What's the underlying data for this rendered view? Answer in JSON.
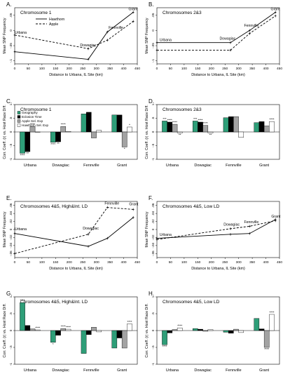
{
  "colors": {
    "geography": "#2e9e78",
    "eclosion": "#000000",
    "apple_sel": "#a3a3a3",
    "hawthorn_sel": "#ffffff"
  },
  "chart_data": [
    {
      "id": "A",
      "panel_label": "A.",
      "type": "line",
      "title": "Chromosome 1",
      "xlabel": "Distance to Urbana, IL Site (km)",
      "ylabel": "Mean SNP Frequency",
      "xlim": [
        0,
        450
      ],
      "ylim": [
        -0.11,
        0.075
      ],
      "xticks": [
        0,
        50,
        100,
        150,
        200,
        250,
        300,
        350,
        400,
        450
      ],
      "yticks": [
        -0.1,
        -0.05,
        0,
        0.05
      ],
      "legend": [
        "Hawthorn",
        "Apple"
      ],
      "series": [
        {
          "name": "Hawthorn",
          "style": "solid",
          "x": [
            0,
            270,
            340,
            435
          ],
          "y": [
            -0.07,
            -0.095,
            -0.005,
            0.06
          ]
        },
        {
          "name": "Apple",
          "style": "dashed",
          "x": [
            0,
            270,
            340,
            435
          ],
          "y": [
            -0.015,
            -0.06,
            -0.032,
            0.03
          ]
        }
      ],
      "labels": [
        {
          "text": "Urbana",
          "x": 0,
          "y": -0.01
        },
        {
          "text": "Dowagiac",
          "x": 240,
          "y": -0.052
        },
        {
          "text": "Fennville",
          "x": 345,
          "y": 0.006
        },
        {
          "text": "Grant",
          "x": 418,
          "y": 0.067
        }
      ]
    },
    {
      "id": "B",
      "panel_label": "B.",
      "type": "line",
      "title": "Chromosomes 2&3",
      "xlabel": "Distance to Urbana, IL Site (km)",
      "ylabel": "Mean SNP Frequency",
      "xlim": [
        0,
        450
      ],
      "ylim": [
        -0.11,
        0.075
      ],
      "xticks": [
        0,
        50,
        100,
        150,
        200,
        250,
        300,
        350,
        400,
        450
      ],
      "yticks": [
        -0.1,
        -0.05,
        0,
        0.05
      ],
      "series": [
        {
          "name": "Hawthorn",
          "style": "solid",
          "x": [
            0,
            270,
            340,
            435
          ],
          "y": [
            -0.04,
            -0.04,
            0,
            0.06
          ]
        },
        {
          "name": "Apple",
          "style": "dashed",
          "x": [
            0,
            270,
            340,
            435
          ],
          "y": [
            -0.065,
            -0.065,
            -0.01,
            0.048
          ]
        }
      ],
      "labels": [
        {
          "text": "Urbana",
          "x": 10,
          "y": -0.035
        },
        {
          "text": "Dowagiac",
          "x": 230,
          "y": -0.03
        },
        {
          "text": "Fennville",
          "x": 320,
          "y": 0.012
        },
        {
          "text": "Grant",
          "x": 418,
          "y": 0.067
        }
      ]
    },
    {
      "id": "C",
      "panel_label": "C.",
      "type": "bar",
      "title": "Chromosome 1",
      "ylabel": "Corr. Coeff. (r) vs. Host Race Diff.",
      "ylim": [
        -1.0,
        1.0
      ],
      "yticks": [
        -1,
        -0.5,
        0,
        0.5,
        1
      ],
      "categories": [
        "Urbana",
        "Dowagiac",
        "Fennville",
        "Grant"
      ],
      "legend": [
        "Geography",
        "Eclosion Time",
        "Apple Sel. Exp",
        "Hawthorn Sel. Exp"
      ],
      "series": [
        {
          "name": "Geography",
          "values": [
            -0.78,
            -0.38,
            0.66,
            0.62
          ]
        },
        {
          "name": "Eclosion Time",
          "values": [
            -0.72,
            -0.36,
            0.72,
            0.62
          ]
        },
        {
          "name": "Apple Sel. Exp",
          "values": [
            0.2,
            0.2,
            -0.22,
            -0.55
          ]
        },
        {
          "name": "Hawthorn Sel. Exp",
          "values": [
            0.0,
            0.02,
            0.06,
            0.18
          ]
        }
      ],
      "markers": [
        [
          "****",
          "****",
          "",
          ""
        ],
        [
          "**",
          "**",
          "",
          ""
        ],
        [
          "****",
          "****",
          "",
          "*"
        ],
        [
          "",
          "",
          "",
          "*"
        ]
      ]
    },
    {
      "id": "D",
      "panel_label": "D.",
      "type": "bar",
      "title": "Chromosomes 2&3",
      "ylabel": "Corr. Coeff. (r) vs. Host Race Diff.",
      "ylim": [
        -1.0,
        1.0
      ],
      "yticks": [
        -1,
        -0.5,
        0,
        0.5,
        1
      ],
      "categories": [
        "Urbana",
        "Dowagiac",
        "Fennville",
        "Grant"
      ],
      "series": [
        {
          "name": "Geography",
          "values": [
            0.4,
            0.4,
            0.52,
            0.34
          ]
        },
        {
          "name": "Eclosion Time",
          "values": [
            0.36,
            0.36,
            0.56,
            0.38
          ]
        },
        {
          "name": "Apple Sel. Exp",
          "values": [
            0.28,
            0.24,
            0.56,
            0.22
          ]
        },
        {
          "name": "Hawthorn Sel. Exp",
          "values": [
            -0.04,
            -0.04,
            -0.2,
            0.38
          ]
        }
      ],
      "markers": [
        [
          "***",
          "***",
          "",
          ""
        ],
        [
          "****",
          "****",
          "",
          ""
        ],
        [
          "****",
          "****",
          "",
          ""
        ],
        [
          "**",
          "**",
          "",
          "****"
        ]
      ]
    },
    {
      "id": "E",
      "panel_label": "E.",
      "type": "line",
      "title": "Chromosomes 4&5, High&Int. LD",
      "xlabel": "Distance to Urbana, IL Site (km)",
      "ylabel": "Mean SNP Frequency",
      "xlim": [
        0,
        450
      ],
      "ylim": [
        -0.07,
        0.07
      ],
      "xticks": [
        0,
        50,
        100,
        150,
        200,
        250,
        300,
        350,
        400,
        450
      ],
      "yticks": [
        -0.06,
        -0.04,
        -0.02,
        0,
        0.02,
        0.04,
        0.06
      ],
      "series": [
        {
          "name": "Hawthorn",
          "style": "solid",
          "x": [
            0,
            270,
            340,
            435
          ],
          "y": [
            -0.01,
            -0.042,
            -0.022,
            0.03
          ]
        },
        {
          "name": "Apple",
          "style": "dashed",
          "x": [
            0,
            270,
            340,
            435
          ],
          "y": [
            -0.06,
            -0.012,
            0.055,
            0.05
          ]
        }
      ],
      "labels": [
        {
          "text": "Urbana",
          "x": 0,
          "y": -0.002
        },
        {
          "text": "Dowagiac",
          "x": 250,
          "y": 0.0
        },
        {
          "text": "Fennville",
          "x": 330,
          "y": 0.062
        },
        {
          "text": "Grant",
          "x": 420,
          "y": 0.06
        }
      ]
    },
    {
      "id": "F",
      "panel_label": "F.",
      "type": "line",
      "title": "Chromosomes 4&5, Low LD",
      "xlabel": "Distance to Urbana, IL Site (km)",
      "ylabel": "Mean SNP Frequency",
      "xlim": [
        0,
        450
      ],
      "ylim": [
        -0.07,
        0.07
      ],
      "xticks": [
        0,
        50,
        100,
        150,
        200,
        250,
        300,
        350,
        400,
        450
      ],
      "yticks": [
        -0.06,
        -0.04,
        -0.02,
        0,
        0.02,
        0.04,
        0.06
      ],
      "series": [
        {
          "name": "Hawthorn",
          "style": "solid",
          "x": [
            0,
            270,
            340,
            435
          ],
          "y": [
            -0.022,
            -0.012,
            -0.01,
            0.025
          ]
        },
        {
          "name": "Apple",
          "style": "dashed",
          "x": [
            0,
            270,
            340,
            435
          ],
          "y": [
            -0.025,
            0.002,
            0.008,
            0.022
          ]
        }
      ],
      "labels": [
        {
          "text": "Urbana",
          "x": 10,
          "y": -0.016
        },
        {
          "text": "Dowagiac",
          "x": 245,
          "y": 0.01
        },
        {
          "text": "Fennville",
          "x": 320,
          "y": 0.016
        },
        {
          "text": "Grant",
          "x": 420,
          "y": 0.03
        }
      ]
    },
    {
      "id": "G",
      "panel_label": "G.",
      "type": "bar",
      "title": "Chromosomes 4&5, High&Int. LD",
      "ylabel": "Corr. Coeff. (r) vs. Host Race Diff.",
      "ylim": [
        -1.0,
        1.0
      ],
      "yticks": [
        -1,
        -0.5,
        0,
        0.5,
        1
      ],
      "categories": [
        "Urbana",
        "Dowagiac",
        "Fennville",
        "Grant"
      ],
      "series": [
        {
          "name": "Geography",
          "values": [
            0.83,
            -0.35,
            -0.68,
            -0.52
          ]
        },
        {
          "name": "Eclosion Time",
          "values": [
            0.15,
            -0.14,
            -0.12,
            -0.22
          ]
        },
        {
          "name": "Apple Sel. Exp",
          "values": [
            0.05,
            0.06,
            0.1,
            -0.52
          ]
        },
        {
          "name": "Hawthorn Sel. Exp",
          "values": [
            0.02,
            0.04,
            -0.04,
            0.2
          ]
        }
      ],
      "markers": [
        [
          "****",
          "*",
          "",
          ""
        ],
        [
          "",
          "",
          "",
          ""
        ],
        [
          "",
          "****",
          "",
          ""
        ],
        [
          "****",
          "****",
          "",
          "****"
        ]
      ]
    },
    {
      "id": "H",
      "panel_label": "H.",
      "type": "bar",
      "title": "Chromosomes 4&5, Low LD",
      "ylabel": "Corr. Coeff. (r) vs. Host Race Diff.",
      "ylim": [
        -1.0,
        1.0
      ],
      "yticks": [
        -1,
        -0.5,
        0,
        0.5,
        1
      ],
      "categories": [
        "Urbana",
        "Dowagiac",
        "Fennville",
        "Grant"
      ],
      "series": [
        {
          "name": "Geography",
          "values": [
            -0.42,
            0.06,
            -0.05,
            0.36
          ]
        },
        {
          "name": "Eclosion Time",
          "values": [
            -0.07,
            0.04,
            -0.08,
            0.05
          ]
        },
        {
          "name": "Apple Sel. Exp",
          "values": [
            0.03,
            -0.02,
            0.04,
            -0.5
          ]
        },
        {
          "name": "Hawthorn Sel. Exp",
          "values": [
            0.08,
            0.03,
            -0.06,
            0.48
          ]
        }
      ],
      "markers": [
        [
          "****",
          "",
          "",
          ""
        ],
        [
          "",
          "",
          "",
          ""
        ],
        [
          "",
          "",
          "",
          "****"
        ],
        [
          "****",
          "",
          "",
          "****"
        ]
      ]
    }
  ]
}
